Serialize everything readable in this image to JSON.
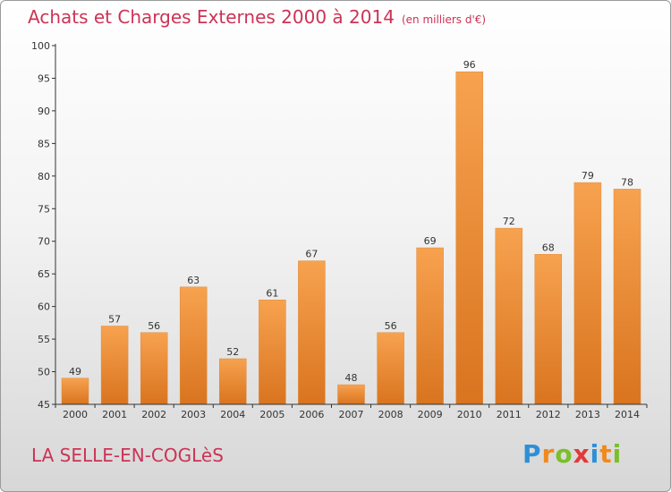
{
  "header": {
    "title": "Achats et Charges Externes 2000 à 2014",
    "unit": "(en milliers d'€)"
  },
  "footer": {
    "place": "LA SELLE-EN-COGLèS",
    "logo": "Proxiti"
  },
  "colors": {
    "title": "#cc3355",
    "bar_top": "#f7a24f",
    "bar_bottom": "#d9741f",
    "axis": "#333333"
  },
  "chart_data": {
    "type": "bar",
    "categories": [
      "2000",
      "2001",
      "2002",
      "2003",
      "2004",
      "2005",
      "2006",
      "2007",
      "2008",
      "2009",
      "2010",
      "2011",
      "2012",
      "2013",
      "2014"
    ],
    "values": [
      49,
      57,
      56,
      63,
      52,
      61,
      67,
      48,
      56,
      69,
      96,
      72,
      68,
      79,
      78
    ],
    "ylim": [
      45,
      100
    ],
    "yticks": [
      45,
      50,
      55,
      60,
      65,
      70,
      75,
      80,
      85,
      90,
      95,
      100
    ],
    "grid": false,
    "title": "Achats et Charges Externes 2000 à 2014",
    "xlabel": "",
    "ylabel": ""
  }
}
